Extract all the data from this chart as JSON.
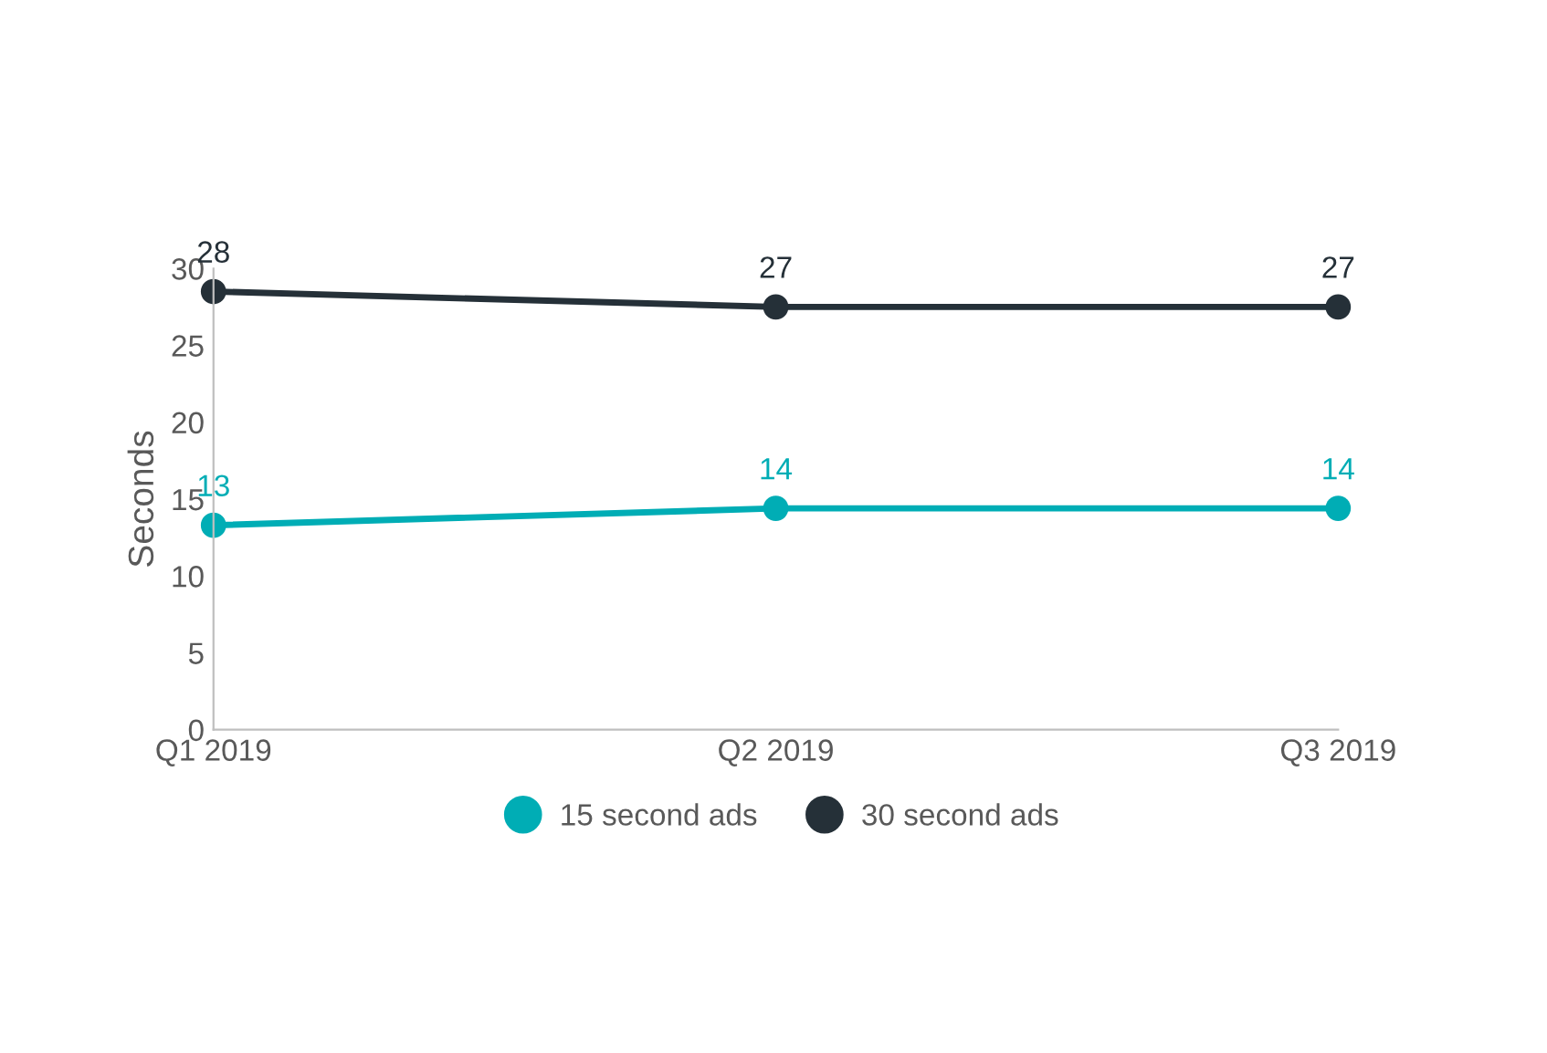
{
  "chart_data": {
    "type": "line",
    "ylabel": "Seconds",
    "categories": [
      "Q1 2019",
      "Q2 2019",
      "Q3 2019"
    ],
    "series": [
      {
        "name": "15 second ads",
        "color": "#00adb5",
        "values": [
          13.3,
          14.4,
          14.4
        ],
        "value_labels": [
          "13",
          "14",
          "14"
        ]
      },
      {
        "name": "30 second ads",
        "color": "#253038",
        "values": [
          28.5,
          27.5,
          27.5
        ],
        "value_labels": [
          "28",
          "27",
          "27"
        ]
      }
    ],
    "ylim": [
      0,
      30
    ],
    "yticks": [
      0,
      5,
      10,
      15,
      20,
      25,
      30
    ],
    "grid": false,
    "legend": "bottom",
    "marker": "circle",
    "line_style": "solid"
  }
}
